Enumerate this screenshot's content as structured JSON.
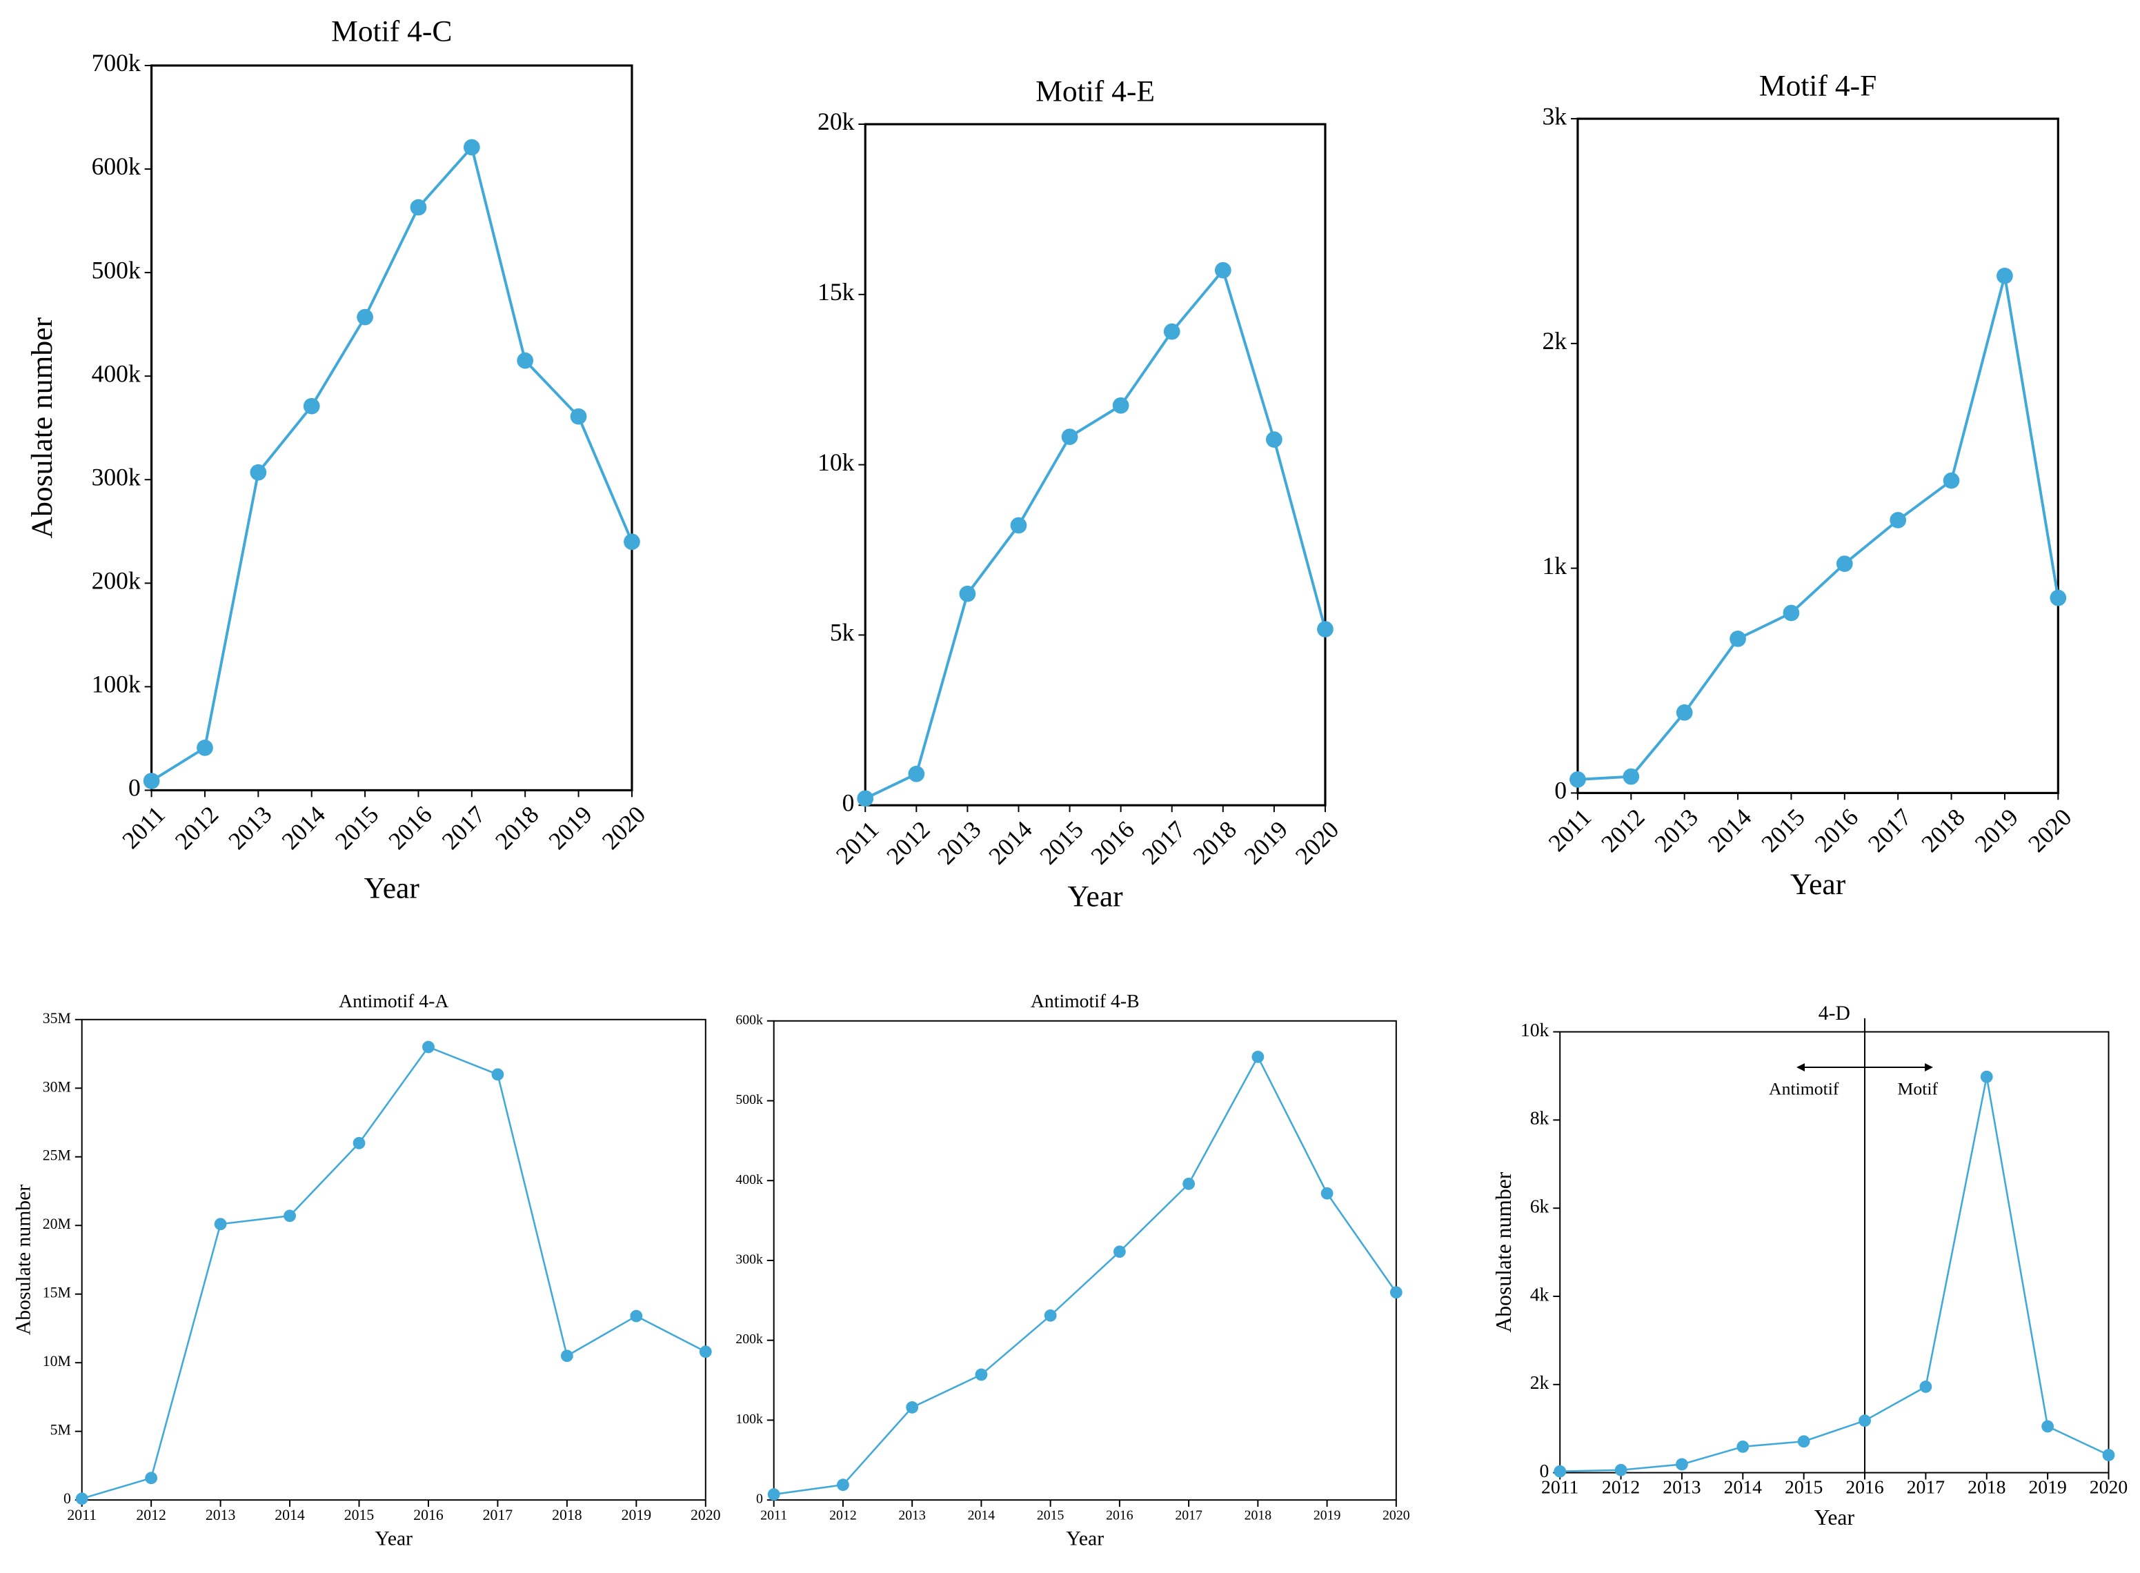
{
  "chart_data": [
    {
      "type": "line",
      "title": "Motif 4-C",
      "x_label": "Year",
      "y_label": "Abosulate number",
      "color": "#41a9d9",
      "categories": [
        "2011",
        "2012",
        "2013",
        "2014",
        "2015",
        "2016",
        "2017",
        "2018",
        "2019",
        "2020"
      ],
      "values": [
        9000,
        41000,
        307000,
        371000,
        457000,
        563000,
        621000,
        415000,
        361000,
        240000
      ],
      "ylim": [
        0,
        700000
      ],
      "yticks": [
        0,
        {
          "value": 100000,
          "label": "100k"
        },
        {
          "value": 200000,
          "label": "200k"
        },
        {
          "value": 300000,
          "label": "300k"
        },
        {
          "value": 400000,
          "label": "400k"
        },
        {
          "value": 500000,
          "label": "500k"
        },
        {
          "value": 600000,
          "label": "600k"
        },
        {
          "value": 700000,
          "label": "700k"
        }
      ]
    },
    {
      "type": "line",
      "title": "Motif 4-E",
      "x_label": "Year",
      "color": "#41a9d9",
      "categories": [
        "2011",
        "2012",
        "2013",
        "2014",
        "2015",
        "2016",
        "2017",
        "2018",
        "2019",
        "2020"
      ],
      "values": [
        200,
        920,
        6210,
        8220,
        10820,
        11740,
        13910,
        15710,
        10740,
        5170
      ],
      "ylim": [
        0,
        20000
      ],
      "yticks": [
        0,
        {
          "value": 5000,
          "label": "5k"
        },
        {
          "value": 10000,
          "label": "10k"
        },
        {
          "value": 15000,
          "label": "15k"
        },
        {
          "value": 20000,
          "label": "20k"
        }
      ]
    },
    {
      "type": "line",
      "title": "Motif 4-F",
      "x_label": "Year",
      "color": "#41a9d9",
      "categories": [
        "2011",
        "2012",
        "2013",
        "2014",
        "2015",
        "2016",
        "2017",
        "2018",
        "2019",
        "2020"
      ],
      "values": [
        60,
        73,
        358,
        686,
        801,
        1020,
        1214,
        1390,
        2301,
        868
      ],
      "ylim": [
        0,
        3000
      ],
      "yticks": [
        0,
        {
          "value": 1000,
          "label": "1k"
        },
        {
          "value": 2000,
          "label": "2k"
        },
        {
          "value": 3000,
          "label": "3k"
        }
      ]
    },
    {
      "type": "line",
      "title": "Antimotif 4-A",
      "x_label": "Year",
      "y_label": "Abosulate number",
      "color": "#41a9d9",
      "categories": [
        "2011",
        "2012",
        "2013",
        "2014",
        "2015",
        "2016",
        "2017",
        "2018",
        "2019",
        "2020"
      ],
      "values": [
        100000,
        1600000,
        20100000,
        20700000,
        26000000,
        33000000,
        31000000,
        10500000,
        13400000,
        10800000
      ],
      "ylim": [
        0,
        35000000
      ],
      "yticks": [
        0,
        {
          "value": 5000000,
          "label": "5M"
        },
        {
          "value": 10000000,
          "label": "10M"
        },
        {
          "value": 15000000,
          "label": "15M"
        },
        {
          "value": 20000000,
          "label": "20M"
        },
        {
          "value": 25000000,
          "label": "25M"
        },
        {
          "value": 30000000,
          "label": "30M"
        },
        {
          "value": 35000000,
          "label": "35M"
        }
      ]
    },
    {
      "type": "line",
      "title": "Antimotif 4-B",
      "x_label": "Year",
      "color": "#41a9d9",
      "categories": [
        "2011",
        "2012",
        "2013",
        "2014",
        "2015",
        "2016",
        "2017",
        "2018",
        "2019",
        "2020"
      ],
      "values": [
        7000,
        19000,
        116000,
        157000,
        231000,
        311000,
        396000,
        555000,
        384000,
        260000
      ],
      "ylim": [
        0,
        600000
      ],
      "yticks": [
        0,
        {
          "value": 100000,
          "label": "100k"
        },
        {
          "value": 200000,
          "label": "200k"
        },
        {
          "value": 300000,
          "label": "300k"
        },
        {
          "value": 400000,
          "label": "400k"
        },
        {
          "value": 500000,
          "label": "500k"
        },
        {
          "value": 600000,
          "label": "600k"
        }
      ]
    },
    {
      "type": "line",
      "title": "4-D",
      "x_label": "Year",
      "y_label": "Abosulate number",
      "color": "#41a9d9",
      "categories": [
        "2011",
        "2012",
        "2013",
        "2014",
        "2015",
        "2016",
        "2017",
        "2018",
        "2019",
        "2020"
      ],
      "values": [
        30,
        60,
        190,
        590,
        710,
        1180,
        1950,
        8980,
        1050,
        400
      ],
      "ylim": [
        0,
        10000
      ],
      "yticks": [
        0,
        {
          "value": 2000,
          "label": "2k"
        },
        {
          "value": 4000,
          "label": "4k"
        },
        {
          "value": 6000,
          "label": "6k"
        },
        {
          "value": 8000,
          "label": "8k"
        },
        {
          "value": 10000,
          "label": "10k"
        }
      ],
      "divider": "2016",
      "annotations": [
        "Antimotif",
        "Motif"
      ]
    }
  ]
}
